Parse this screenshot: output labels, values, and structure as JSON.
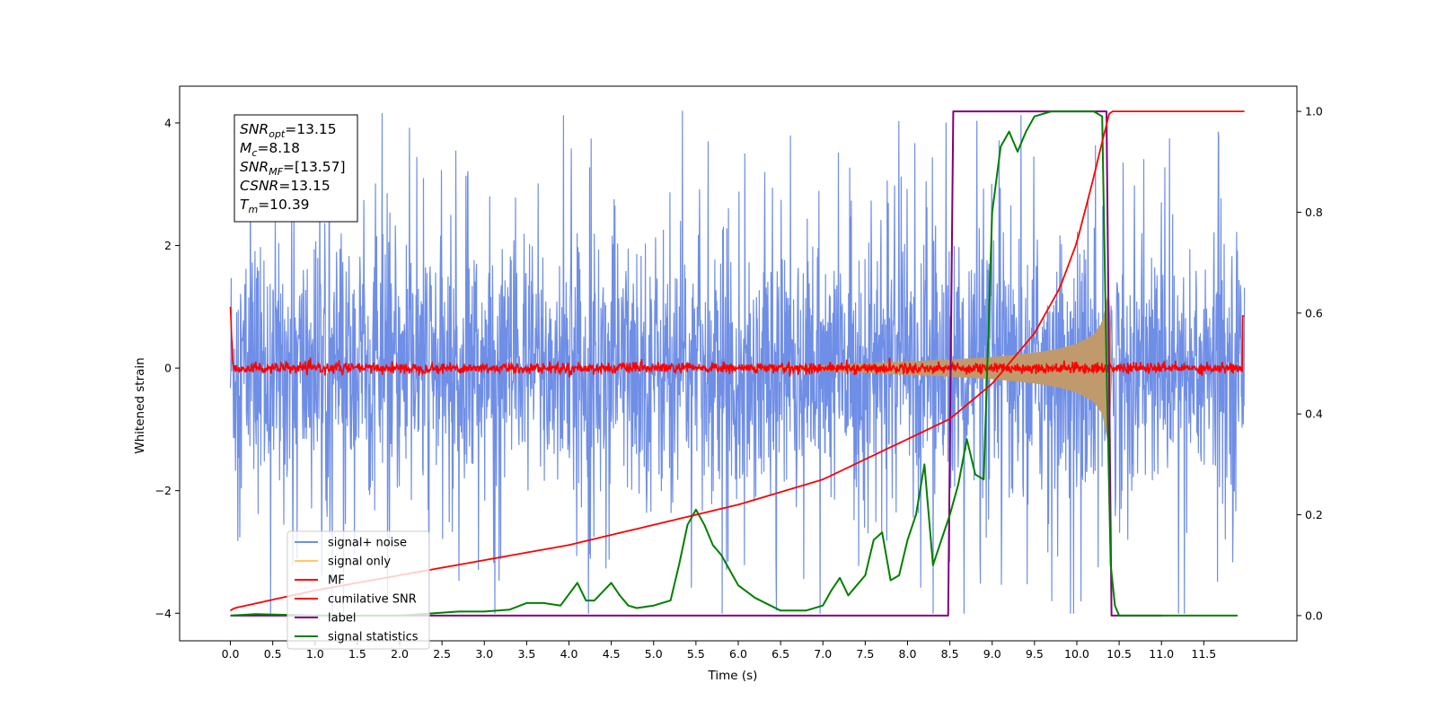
{
  "chart_data": {
    "type": "line",
    "xlabel": "Time (s)",
    "ylabel": "Whitened strain",
    "xlim": [
      -0.6,
      12.6
    ],
    "ylim": [
      -4.45,
      4.6
    ],
    "ylim_right": [
      -0.05,
      1.05
    ],
    "x_ticks": [
      0.0,
      0.5,
      1.0,
      1.5,
      2.0,
      2.5,
      3.0,
      3.5,
      4.0,
      4.5,
      5.0,
      5.5,
      6.0,
      6.5,
      7.0,
      7.5,
      8.0,
      8.5,
      9.0,
      9.5,
      10.0,
      10.5,
      11.0,
      11.5
    ],
    "x_tick_labels": [
      "0.0",
      "0.5",
      "1.0",
      "1.5",
      "2.0",
      "2.5",
      "3.0",
      "3.5",
      "4.0",
      "4.5",
      "5.0",
      "5.5",
      "6.0",
      "6.5",
      "7.0",
      "7.5",
      "8.0",
      "8.5",
      "9.0",
      "9.5",
      "10.0",
      "10.5",
      "11.0",
      "11.5"
    ],
    "y_ticks": [
      -4,
      -2,
      0,
      2,
      4
    ],
    "y_tick_labels": [
      "−4",
      "−2",
      "0",
      "2",
      "4"
    ],
    "y_right_ticks": [
      0.0,
      0.2,
      0.4,
      0.6,
      0.8,
      1.0
    ],
    "y_right_tick_labels": [
      "0.0",
      "0.2",
      "0.4",
      "0.6",
      "0.8",
      "1.0"
    ],
    "legend_position": "lower-left",
    "legend": [
      {
        "label": "signal+ noise",
        "color": "#6f8ee6"
      },
      {
        "label": "signal only",
        "color": "#ffc864"
      },
      {
        "label": "MF",
        "color": "#ff0000"
      },
      {
        "label": "cumilative SNR",
        "color": "#ff0000"
      },
      {
        "label": "label",
        "color": "#800080"
      },
      {
        "label": "signal statistics",
        "color": "#008000"
      }
    ],
    "info_box": [
      {
        "sym": "SNR",
        "sub": "opt",
        "value": "=13.15"
      },
      {
        "sym": "M",
        "sub": "c",
        "value": "=8.18"
      },
      {
        "sym": "SNR",
        "sub": "MF",
        "value": "=[13.57]"
      },
      {
        "sym": "CSNR",
        "sub": "",
        "value": "=13.15"
      },
      {
        "sym": "T",
        "sub": "m",
        "value": "=10.39"
      }
    ],
    "series": [
      {
        "name": "signal+ noise",
        "axis": "left",
        "color": "#6f8ee6",
        "noise_band": {
          "x_start": 0.0,
          "x_end": 11.98,
          "amplitude": 1.0,
          "peak_amplitude": 4.2
        }
      },
      {
        "name": "signal only",
        "axis": "left",
        "color": "#ffc864",
        "envelope": {
          "x": [
            0.0,
            6.0,
            7.0,
            7.5,
            8.0,
            8.5,
            9.0,
            9.5,
            9.8,
            10.0,
            10.2,
            10.3,
            10.38,
            10.42,
            11.98
          ],
          "amplitude": [
            0.0,
            0.02,
            0.05,
            0.08,
            0.11,
            0.14,
            0.18,
            0.25,
            0.32,
            0.4,
            0.55,
            0.75,
            1.3,
            0.0,
            0.0
          ]
        }
      },
      {
        "name": "MF",
        "axis": "left",
        "color": "#ff0000",
        "noise_band": {
          "x_start": 0.0,
          "x_end": 11.98,
          "amplitude": 0.08,
          "start_value": 1.0,
          "end_value": 0.85
        }
      },
      {
        "name": "cumilative SNR",
        "axis": "right",
        "color": "#ff0000",
        "x": [
          0.0,
          0.05,
          1.0,
          2.0,
          3.0,
          4.0,
          5.0,
          6.0,
          7.0,
          7.5,
          8.0,
          8.5,
          9.0,
          9.5,
          9.8,
          10.0,
          10.2,
          10.3,
          10.39,
          10.4,
          11.98
        ],
        "y": [
          0.01,
          0.015,
          0.05,
          0.08,
          0.11,
          0.14,
          0.18,
          0.22,
          0.27,
          0.31,
          0.35,
          0.39,
          0.46,
          0.56,
          0.65,
          0.74,
          0.87,
          0.94,
          1.0,
          1.0,
          1.0
        ]
      },
      {
        "name": "label",
        "axis": "right",
        "color": "#800080",
        "x": [
          0.0,
          8.48,
          8.54,
          10.35,
          10.41,
          11.0
        ],
        "y": [
          0.0,
          0.0,
          1.0,
          1.0,
          0.0,
          0.0
        ]
      },
      {
        "name": "signal statistics",
        "axis": "right",
        "color": "#008000",
        "x": [
          0.0,
          0.3,
          1.0,
          2.0,
          2.7,
          3.0,
          3.3,
          3.5,
          3.7,
          3.9,
          4.1,
          4.2,
          4.3,
          4.5,
          4.6,
          4.7,
          4.8,
          5.0,
          5.2,
          5.3,
          5.4,
          5.5,
          5.6,
          5.7,
          5.8,
          6.0,
          6.2,
          6.5,
          6.8,
          7.0,
          7.1,
          7.2,
          7.3,
          7.4,
          7.5,
          7.6,
          7.7,
          7.8,
          7.9,
          8.0,
          8.1,
          8.2,
          8.3,
          8.4,
          8.5,
          8.6,
          8.7,
          8.8,
          8.9,
          9.0,
          9.1,
          9.2,
          9.3,
          9.4,
          9.5,
          9.7,
          10.0,
          10.2,
          10.3,
          10.35,
          10.4,
          10.45,
          10.5,
          10.6,
          11.0,
          11.9
        ],
        "y": [
          0.0,
          0.003,
          0.0,
          0.0,
          0.008,
          0.008,
          0.012,
          0.025,
          0.025,
          0.02,
          0.065,
          0.03,
          0.03,
          0.065,
          0.04,
          0.02,
          0.015,
          0.02,
          0.03,
          0.1,
          0.18,
          0.21,
          0.18,
          0.14,
          0.12,
          0.06,
          0.035,
          0.01,
          0.01,
          0.02,
          0.05,
          0.075,
          0.04,
          0.06,
          0.08,
          0.15,
          0.165,
          0.07,
          0.08,
          0.15,
          0.2,
          0.3,
          0.1,
          0.15,
          0.2,
          0.26,
          0.35,
          0.28,
          0.27,
          0.8,
          0.93,
          0.96,
          0.92,
          0.96,
          0.99,
          1.0,
          1.0,
          1.0,
          0.99,
          0.5,
          0.1,
          0.02,
          0.0,
          0.0,
          0.0,
          0.0
        ]
      }
    ]
  }
}
